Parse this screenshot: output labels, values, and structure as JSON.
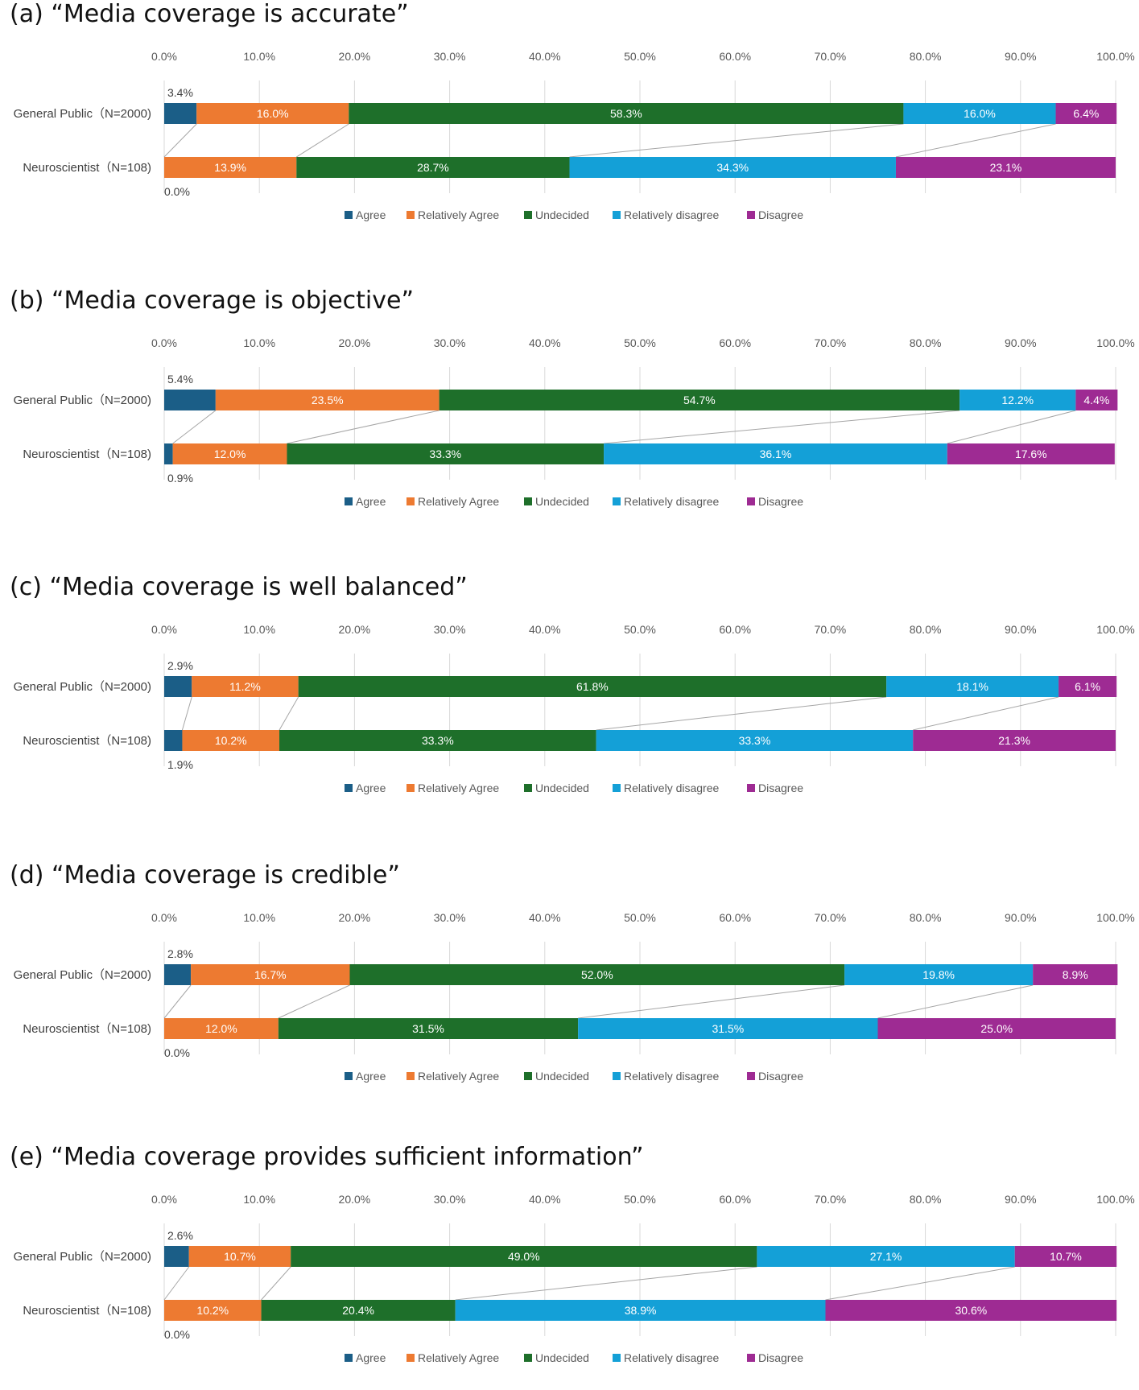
{
  "categories": [
    "General Public（N=2000)",
    "Neuroscientist（N=108)"
  ],
  "ticks": [
    "0.0%",
    "10.0%",
    "20.0%",
    "30.0%",
    "40.0%",
    "50.0%",
    "60.0%",
    "70.0%",
    "80.0%",
    "90.0%",
    "100.0%"
  ],
  "legend": [
    "Agree",
    "Relatively Agree",
    "Undecided",
    "Relatively disagree",
    "Disagree"
  ],
  "colors": [
    "#1b5e87",
    "#ed7a31",
    "#1e6f2a",
    "#14a0d7",
    "#9e2b93"
  ],
  "chart_data": [
    {
      "type": "bar",
      "stacked": "horizontal",
      "title": "(a) “Media coverage is accurate”",
      "categories": [
        "General Public（N=2000)",
        "Neuroscientist（N=108)"
      ],
      "xlim": [
        0,
        100
      ],
      "series": [
        {
          "name": "Agree",
          "values": [
            3.4,
            0.0
          ],
          "labels": [
            "3.4%",
            "0.0%"
          ]
        },
        {
          "name": "Relatively Agree",
          "values": [
            16.0,
            13.9
          ],
          "labels": [
            "16.0%",
            "13.9%"
          ]
        },
        {
          "name": "Undecided",
          "values": [
            58.3,
            28.7
          ],
          "labels": [
            "58.3%",
            "28.7%"
          ]
        },
        {
          "name": "Relatively disagree",
          "values": [
            16.0,
            34.3
          ],
          "labels": [
            "16.0%",
            "34.3%"
          ]
        },
        {
          "name": "Disagree",
          "values": [
            6.4,
            23.1
          ],
          "labels": [
            "6.4%",
            "23.1%"
          ]
        }
      ]
    },
    {
      "type": "bar",
      "stacked": "horizontal",
      "title": "(b) “Media coverage is objective”",
      "categories": [
        "General Public（N=2000)",
        "Neuroscientist（N=108)"
      ],
      "xlim": [
        0,
        100
      ],
      "series": [
        {
          "name": "Agree",
          "values": [
            5.4,
            0.9
          ],
          "labels": [
            "5.4%",
            "0.9%"
          ]
        },
        {
          "name": "Relatively Agree",
          "values": [
            23.5,
            12.0
          ],
          "labels": [
            "23.5%",
            "12.0%"
          ]
        },
        {
          "name": "Undecided",
          "values": [
            54.7,
            33.3
          ],
          "labels": [
            "54.7%",
            "33.3%"
          ]
        },
        {
          "name": "Relatively disagree",
          "values": [
            12.2,
            36.1
          ],
          "labels": [
            "12.2%",
            "36.1%"
          ]
        },
        {
          "name": "Disagree",
          "values": [
            4.4,
            17.6
          ],
          "labels": [
            "4.4%",
            "17.6%"
          ]
        }
      ]
    },
    {
      "type": "bar",
      "stacked": "horizontal",
      "title": "(c) “Media coverage is well balanced”",
      "categories": [
        "General Public（N=2000)",
        "Neuroscientist（N=108)"
      ],
      "xlim": [
        0,
        100
      ],
      "series": [
        {
          "name": "Agree",
          "values": [
            2.9,
            1.9
          ],
          "labels": [
            "2.9%",
            "1.9%"
          ]
        },
        {
          "name": "Relatively Agree",
          "values": [
            11.2,
            10.2
          ],
          "labels": [
            "11.2%",
            "10.2%"
          ]
        },
        {
          "name": "Undecided",
          "values": [
            61.8,
            33.3
          ],
          "labels": [
            "61.8%",
            "33.3%"
          ]
        },
        {
          "name": "Relatively disagree",
          "values": [
            18.1,
            33.3
          ],
          "labels": [
            "18.1%",
            "33.3%"
          ]
        },
        {
          "name": "Disagree",
          "values": [
            6.1,
            21.3
          ],
          "labels": [
            "6.1%",
            "21.3%"
          ]
        }
      ]
    },
    {
      "type": "bar",
      "stacked": "horizontal",
      "title": "(d) “Media coverage is credible”",
      "categories": [
        "General Public（N=2000)",
        "Neuroscientist（N=108)"
      ],
      "xlim": [
        0,
        100
      ],
      "series": [
        {
          "name": "Agree",
          "values": [
            2.8,
            0.0
          ],
          "labels": [
            "2.8%",
            "0.0%"
          ]
        },
        {
          "name": "Relatively Agree",
          "values": [
            16.7,
            12.0
          ],
          "labels": [
            "16.7%",
            "12.0%"
          ]
        },
        {
          "name": "Undecided",
          "values": [
            52.0,
            31.5
          ],
          "labels": [
            "52.0%",
            "31.5%"
          ]
        },
        {
          "name": "Relatively disagree",
          "values": [
            19.8,
            31.5
          ],
          "labels": [
            "19.8%",
            "31.5%"
          ]
        },
        {
          "name": "Disagree",
          "values": [
            8.9,
            25.0
          ],
          "labels": [
            "8.9%",
            "25.0%"
          ]
        }
      ]
    },
    {
      "type": "bar",
      "stacked": "horizontal",
      "title": "(e) “Media coverage provides sufficient information”",
      "categories": [
        "General Public（N=2000)",
        "Neuroscientist（N=108)"
      ],
      "xlim": [
        0,
        100
      ],
      "series": [
        {
          "name": "Agree",
          "values": [
            2.6,
            0.0
          ],
          "labels": [
            "2.6%",
            "0.0%"
          ]
        },
        {
          "name": "Relatively Agree",
          "values": [
            10.7,
            10.2
          ],
          "labels": [
            "10.7%",
            "10.2%"
          ]
        },
        {
          "name": "Undecided",
          "values": [
            49.0,
            20.4
          ],
          "labels": [
            "49.0%",
            "20.4%"
          ]
        },
        {
          "name": "Relatively disagree",
          "values": [
            27.1,
            38.9
          ],
          "labels": [
            "27.1%",
            "38.9%"
          ]
        },
        {
          "name": "Disagree",
          "values": [
            10.7,
            30.6
          ],
          "labels": [
            "10.7%",
            "30.6%"
          ]
        }
      ]
    }
  ]
}
